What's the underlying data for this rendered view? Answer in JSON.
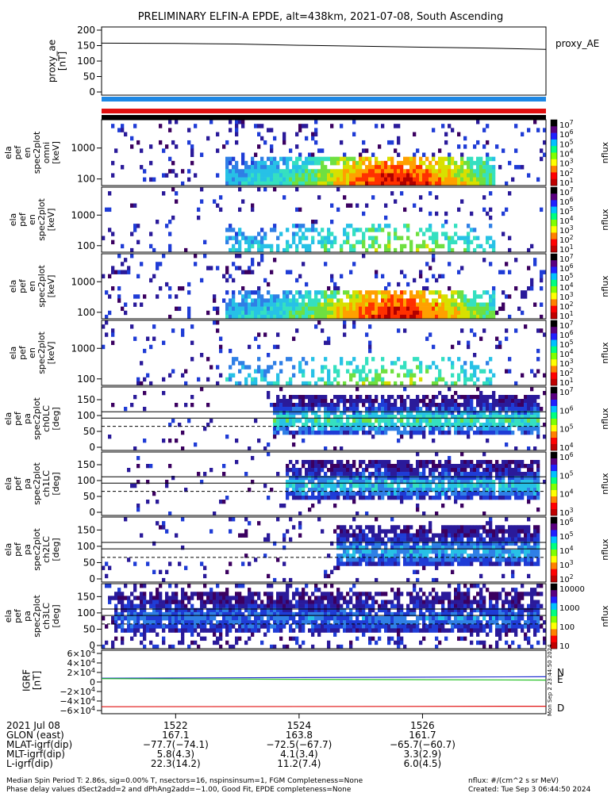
{
  "title": "PRELIMINARY ELFIN-A EPDE, alt=438km, 2021-07-08, South Ascending",
  "colors": {
    "blue_bar": "#1e88e5",
    "red_bar": "#e01010",
    "black_bar": "#000000",
    "spec": [
      "#3b0060",
      "#2a1a9a",
      "#1f3cd6",
      "#2f7fe6",
      "#27c1e6",
      "#35e0c0",
      "#6fe040",
      "#d8e000",
      "#ffa000",
      "#ff3000",
      "#b00000"
    ]
  },
  "chart_data": [
    {
      "id": "proxy_ae",
      "type": "line",
      "ylabel": "proxy_ae\n[nT]",
      "legend": "proxy_AE",
      "ylim": [
        0,
        200
      ],
      "yticks": [
        "200",
        "150",
        "100",
        "50",
        "0"
      ],
      "series": [
        {
          "name": "proxy_AE",
          "x": [
            1520.8,
            1522,
            1523,
            1524,
            1525,
            1526,
            1527,
            1528.0
          ],
          "y": [
            158,
            157,
            155,
            151,
            148,
            145,
            142,
            138
          ]
        }
      ]
    },
    {
      "id": "spec_en_1",
      "type": "heatmap",
      "ylabel": "ela\npef\nen\nspec2plot\nomni\n[keV]",
      "ytick_labels": [
        "1000",
        "100"
      ],
      "colorbar": {
        "label": "nflux",
        "ticks": [
          "10^7",
          "10^6",
          "10^5",
          "10^4",
          "10^3",
          "10^2",
          "10^1"
        ]
      }
    },
    {
      "id": "spec_en_2",
      "type": "heatmap",
      "ylabel": "ela\npef\nen\nspec2plot\n[keV]",
      "ytick_labels": [
        "1000",
        "100"
      ],
      "colorbar": {
        "label": "nflux",
        "ticks": [
          "10^7",
          "10^6",
          "10^5",
          "10^4",
          "10^3",
          "10^2",
          "10^1"
        ]
      }
    },
    {
      "id": "spec_en_3",
      "type": "heatmap",
      "ylabel": "ela\npef\nen\nspec2plot\n[keV]",
      "ytick_labels": [
        "1000",
        "100"
      ],
      "colorbar": {
        "label": "nflux",
        "ticks": [
          "10^7",
          "10^6",
          "10^5",
          "10^4",
          "10^3",
          "10^2",
          "10^1"
        ]
      }
    },
    {
      "id": "spec_en_4",
      "type": "heatmap",
      "ylabel": "ela\npef\nen\nspec2plot\n[keV]",
      "ytick_labels": [
        "1000",
        "100"
      ],
      "colorbar": {
        "label": "nflux",
        "ticks": [
          "10^7",
          "10^6",
          "10^5",
          "10^4",
          "10^3",
          "10^2",
          "10^1"
        ]
      }
    },
    {
      "id": "pa_ch0",
      "type": "heatmap",
      "ylabel": "ela\npef\npa\nspec2plot\nch0LC\n[deg]",
      "ytick_labels": [
        "150",
        "100",
        "50",
        "0"
      ],
      "colorbar": {
        "label": "nflux",
        "ticks": [
          "10^7",
          "10^6",
          "10^5",
          "10^4"
        ]
      }
    },
    {
      "id": "pa_ch1",
      "type": "heatmap",
      "ylabel": "ela\npef\npa\nspec2plot\nch1LC\n[deg]",
      "ytick_labels": [
        "150",
        "100",
        "50",
        "0"
      ],
      "colorbar": {
        "label": "nflux",
        "ticks": [
          "10^6",
          "10^5",
          "10^4",
          "10^3"
        ]
      }
    },
    {
      "id": "pa_ch2",
      "type": "heatmap",
      "ylabel": "ela\npef\npa\nspec2plot\nch2LC\n[deg]",
      "ytick_labels": [
        "150",
        "100",
        "50",
        "0"
      ],
      "colorbar": {
        "label": "nflux",
        "ticks": [
          "10^6",
          "10^5",
          "10^4",
          "10^3",
          "10^2"
        ]
      }
    },
    {
      "id": "pa_ch3",
      "type": "heatmap",
      "ylabel": "ela\npef\npa\nspec2plot\nch3LC\n[deg]",
      "ytick_labels": [
        "150",
        "100",
        "50",
        "0"
      ],
      "colorbar": {
        "label": "nflux",
        "ticks": [
          "10000",
          "1000",
          "100",
          "10"
        ]
      }
    },
    {
      "id": "igrf",
      "type": "line",
      "ylabel": "IGRF\n[nT]",
      "ylim": [
        -60000,
        60000
      ],
      "yticks": [
        "6×10^4",
        "4×10^4",
        "2×10^4",
        "0",
        "−2×10^4",
        "−4×10^4",
        "−6×10^4"
      ],
      "series": [
        {
          "name": "N",
          "color": "#2030d0",
          "x": [
            1520.8,
            1528.0
          ],
          "y": [
            8000,
            11000
          ]
        },
        {
          "name": "E",
          "color": "#20c020",
          "x": [
            1520.8,
            1528.0
          ],
          "y": [
            7000,
            4000
          ]
        },
        {
          "name": "D",
          "color": "#e01010",
          "x": [
            1520.8,
            1528.0
          ],
          "y": [
            -52000,
            -51000
          ]
        }
      ]
    }
  ],
  "xaxis": {
    "ticks": [
      1522,
      1524,
      1526
    ],
    "tick_labels": [
      "1522",
      "1524",
      "1526"
    ],
    "rows": [
      {
        "label": "2021 Jul 08",
        "values": [
          "1522",
          "1524",
          "1526"
        ]
      },
      {
        "label": "GLON (east)",
        "values": [
          "167.1",
          "163.8",
          "161.7"
        ]
      },
      {
        "label": "MLAT-igrf(dip)",
        "values": [
          "−77.7(−74.1)",
          "−72.5(−67.7)",
          "−65.7(−60.7)"
        ]
      },
      {
        "label": "MLT-igrf(dip)",
        "values": [
          "5.8(4.3)",
          "4.1(3.4)",
          "3.3(2.9)"
        ]
      },
      {
        "label": "L-igrf(dip)",
        "values": [
          "22.3(14.2)",
          "11.2(7.4)",
          "6.0(4.5)"
        ]
      }
    ]
  },
  "footer": {
    "line1": "Median Spin Period T: 2.86s, sig=0.00% T, nsectors=16, nspinsinsum=1, FGM Completeness=None",
    "line2": "Phase delay values dSect2add=2 and dPhAng2add=−1.00, Good Fit, EPDE completeness=None",
    "right1": "nflux: #/(cm^2 s sr MeV)",
    "right2": "Created: Tue Sep  3 06:44:50 2024",
    "side_stamp": "Mon Sep  2 23:44:50 2024"
  }
}
